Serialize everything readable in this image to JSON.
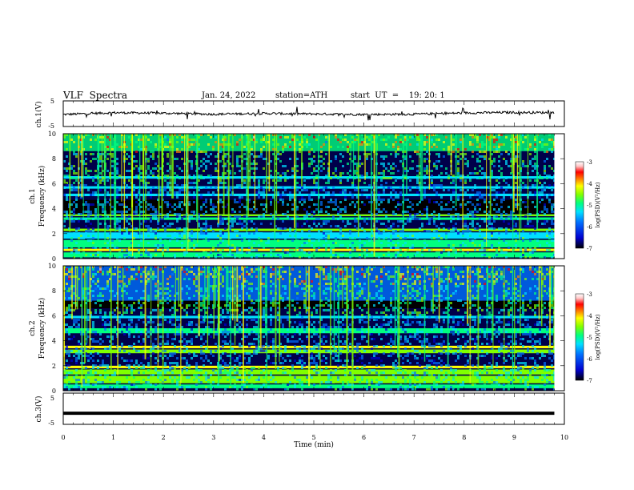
{
  "header": {
    "title": "VLF  Spectra",
    "date": "Jan. 24, 2022",
    "station": "station=ATH",
    "start": "start  UT  =    19: 20: 1"
  },
  "colors": {
    "waveform": "#000000",
    "colormap": [
      "#000000",
      "#00004a",
      "#0000d0",
      "#0070ff",
      "#00e0ff",
      "#00ff80",
      "#80ff00",
      "#ffff00",
      "#ff8000",
      "#ff0000",
      "#ffc8c8",
      "#ffffff"
    ]
  },
  "chart_data": [
    {
      "type": "line",
      "panel": "ch1-waveform",
      "ylabel": "ch.1(V)",
      "ylim": [
        -5,
        5
      ],
      "yticks": [
        "5",
        "-5"
      ],
      "x": [
        0,
        1,
        2,
        3,
        4,
        5,
        6,
        7,
        8,
        9,
        9.8
      ],
      "values": [
        -0.3,
        0.4,
        0.2,
        -0.2,
        0.1,
        -0.1,
        -0.3,
        -0.2,
        0.3,
        0.5,
        0.4
      ]
    },
    {
      "type": "heatmap",
      "panel": "ch1-spectrogram",
      "ylabel": "ch.1",
      "ylabel2": "Frequency  (kHz)",
      "ylim": [
        0,
        10
      ],
      "yticks": [
        "10",
        "8",
        "6",
        "4",
        "2",
        "0"
      ],
      "colorbar": {
        "label": "log(PSD)(V²/Hz)",
        "range": [
          -7,
          -3
        ],
        "ticks": [
          "-3",
          "-4",
          "-5",
          "-6",
          "-7"
        ]
      }
    },
    {
      "type": "heatmap",
      "panel": "ch2-spectrogram",
      "ylabel": "ch.2",
      "ylabel2": "Frequency  (kHz)",
      "ylim": [
        0,
        10
      ],
      "yticks": [
        "10",
        "8",
        "6",
        "4",
        "2",
        "0"
      ],
      "colorbar": {
        "label": "log(PSD)(V²/Hz)",
        "range": [
          -7,
          -3
        ],
        "ticks": [
          "-3",
          "-4",
          "-5",
          "-6",
          "-7"
        ]
      }
    },
    {
      "type": "line",
      "panel": "ch3-waveform",
      "ylabel": "ch.3(V)",
      "ylim": [
        -5,
        5
      ],
      "yticks": [
        "5",
        "-5"
      ],
      "x": [
        0,
        9.8
      ],
      "values": [
        -2,
        -2
      ],
      "xlabel": "Time  (min)",
      "xlim": [
        0,
        10
      ],
      "xticks": [
        "0",
        "1",
        "2",
        "3",
        "4",
        "5",
        "6",
        "7",
        "8",
        "9",
        "10"
      ]
    }
  ]
}
